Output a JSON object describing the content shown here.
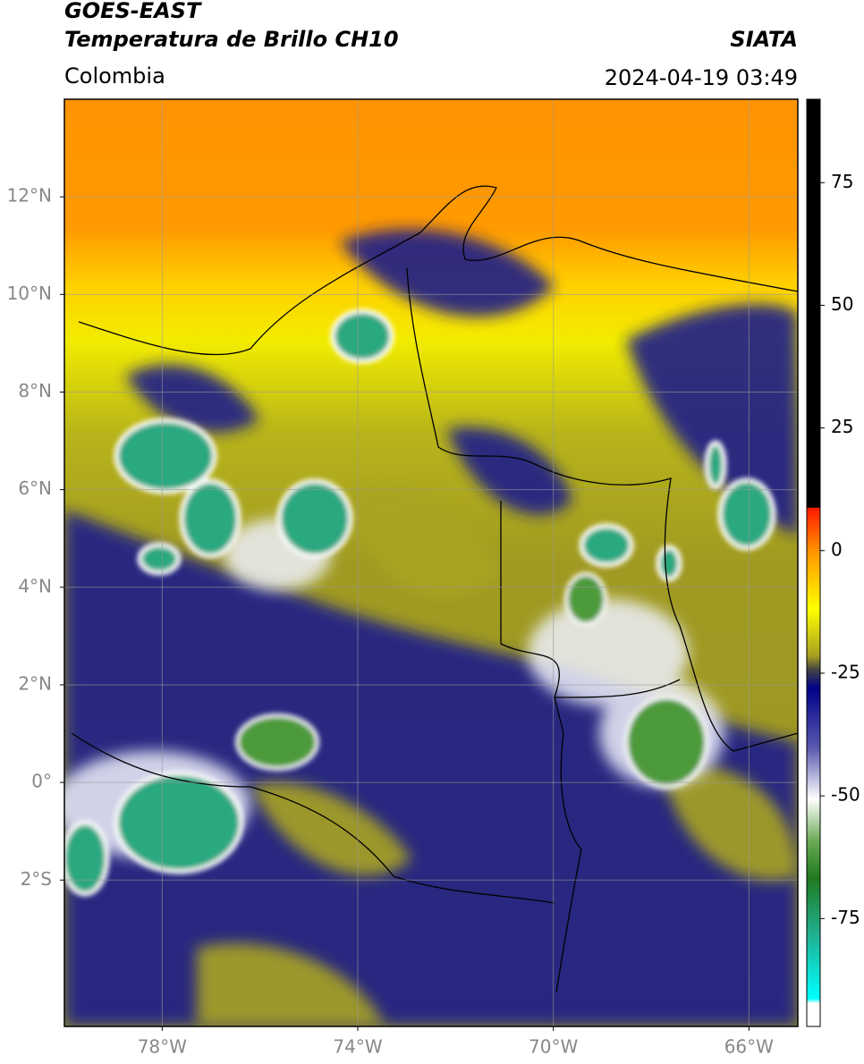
{
  "header": {
    "satellite": "GOES-EAST",
    "product": "Temperatura de Brillo CH10",
    "agency": "SIATA",
    "region": "Colombia",
    "timestamp": "2024-04-19 03:49"
  },
  "map": {
    "lonlim": [
      -80,
      -65
    ],
    "latlim": [
      -5,
      14
    ],
    "lon_ticks": [
      {
        "value": -78,
        "label": "78°W"
      },
      {
        "value": -74,
        "label": "74°W"
      },
      {
        "value": -70,
        "label": "70°W"
      },
      {
        "value": -66,
        "label": "66°W"
      }
    ],
    "lat_ticks": [
      {
        "value": 12,
        "label": "12°N"
      },
      {
        "value": 10,
        "label": "10°N"
      },
      {
        "value": 8,
        "label": "8°N"
      },
      {
        "value": 6,
        "label": "6°N"
      },
      {
        "value": 4,
        "label": "4°N"
      },
      {
        "value": 2,
        "label": "2°N"
      },
      {
        "value": 0,
        "label": "0°"
      },
      {
        "value": -2,
        "label": "2°S"
      }
    ],
    "grid": true
  },
  "colorbar": {
    "lim": [
      -97,
      92
    ],
    "ticks": [
      75,
      50,
      25,
      0,
      -25,
      -50,
      -75
    ]
  }
}
